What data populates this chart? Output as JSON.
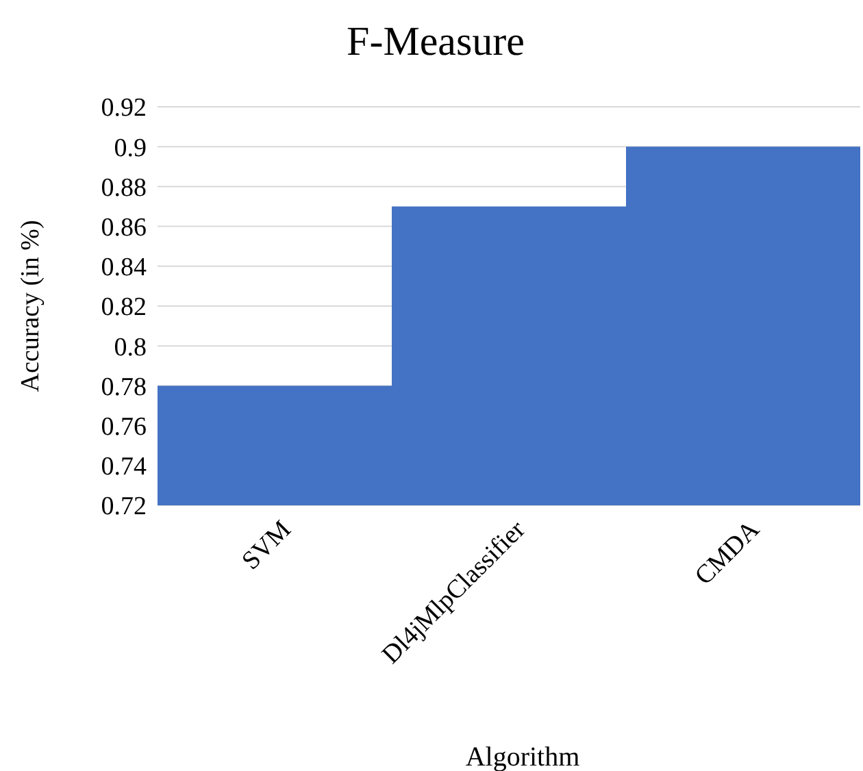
{
  "chart_data": {
    "type": "bar",
    "title": "F-Measure",
    "xlabel": "Algorithm",
    "ylabel": "Accuracy (in %)",
    "categories": [
      "SVM",
      "Dl4jMlpClassifier",
      "CMDA"
    ],
    "values": [
      0.78,
      0.87,
      0.9
    ],
    "color": "#4472c4",
    "ylim": [
      0.72,
      0.92
    ],
    "yticks": [
      0.72,
      0.74,
      0.76,
      0.78,
      0.8,
      0.82,
      0.84,
      0.86,
      0.88,
      0.9,
      0.92
    ],
    "grid": "y"
  }
}
